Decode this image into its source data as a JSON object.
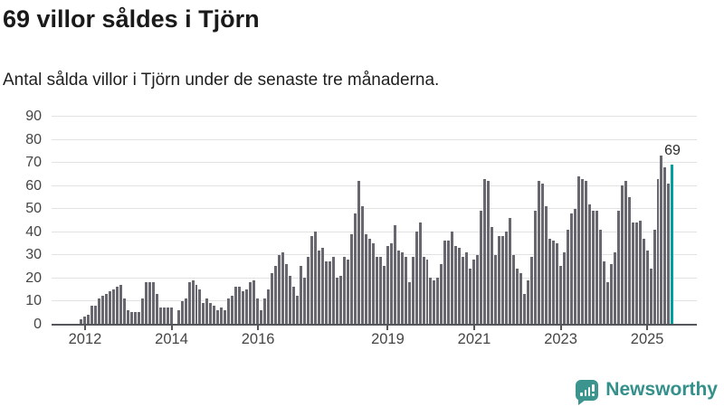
{
  "header": {
    "title": "69 villor såldes i Tjörn",
    "subtitle": "Antal sålda villor i Tjörn under de senaste tre månaderna."
  },
  "chart_data": {
    "type": "bar",
    "title": "69 villor såldes i Tjörn",
    "subtitle": "Antal sålda villor i Tjörn under de senaste tre månaderna.",
    "xlabel": "",
    "ylabel": "",
    "ylim": [
      0,
      90
    ],
    "yticks": [
      0,
      10,
      20,
      30,
      40,
      50,
      60,
      70,
      80,
      90
    ],
    "grid": true,
    "legend": false,
    "x_axis_note": "monthly values from late 2011 to mid 2025",
    "values": [
      2,
      3,
      4,
      8,
      8,
      11,
      12,
      13,
      14,
      15,
      16,
      17,
      11,
      6,
      5,
      5,
      5,
      11,
      18,
      18,
      18,
      13,
      7,
      7,
      7,
      7,
      0,
      6,
      10,
      11,
      18,
      19,
      17,
      15,
      9,
      11,
      9,
      8,
      6,
      7,
      6,
      11,
      12,
      16,
      16,
      14,
      15,
      18,
      19,
      11,
      6,
      11,
      15,
      22,
      25,
      30,
      31,
      26,
      21,
      16,
      12,
      25,
      20,
      29,
      38,
      40,
      32,
      33,
      27,
      27,
      29,
      20,
      21,
      29,
      28,
      39,
      48,
      62,
      51,
      39,
      37,
      35,
      29,
      29,
      25,
      34,
      35,
      43,
      32,
      31,
      29,
      18,
      29,
      40,
      44,
      29,
      28,
      20,
      19,
      20,
      26,
      36,
      36,
      40,
      34,
      33,
      29,
      31,
      24,
      28,
      30,
      49,
      63,
      62,
      42,
      30,
      38,
      38,
      40,
      46,
      30,
      24,
      22,
      13,
      19,
      29,
      49,
      62,
      61,
      51,
      37,
      36,
      35,
      25,
      31,
      41,
      48,
      50,
      64,
      63,
      62,
      52,
      49,
      49,
      41,
      27,
      18,
      26,
      31,
      49,
      60,
      62,
      55,
      44,
      44,
      45,
      37,
      32,
      24,
      41,
      63,
      73,
      68,
      61,
      69
    ],
    "xticks": [
      {
        "label": "2012",
        "index": 1
      },
      {
        "label": "2014",
        "index": 25
      },
      {
        "label": "2016",
        "index": 49
      },
      {
        "label": "2019",
        "index": 85
      },
      {
        "label": "2021",
        "index": 109
      },
      {
        "label": "2023",
        "index": 133
      },
      {
        "label": "2025",
        "index": 157
      }
    ],
    "highlight": {
      "index": 164,
      "value": 69,
      "color": "#00a0a0"
    },
    "annotation": {
      "text": "69",
      "index": 164
    },
    "bar_color": "#68676f",
    "grid_color": "#e2e2e2",
    "axis_color": "#55565c"
  },
  "footer": {
    "brand": "Newsworthy",
    "logo_icon": "bar-chart-speech-bubble-icon",
    "brand_color": "#33908a"
  }
}
